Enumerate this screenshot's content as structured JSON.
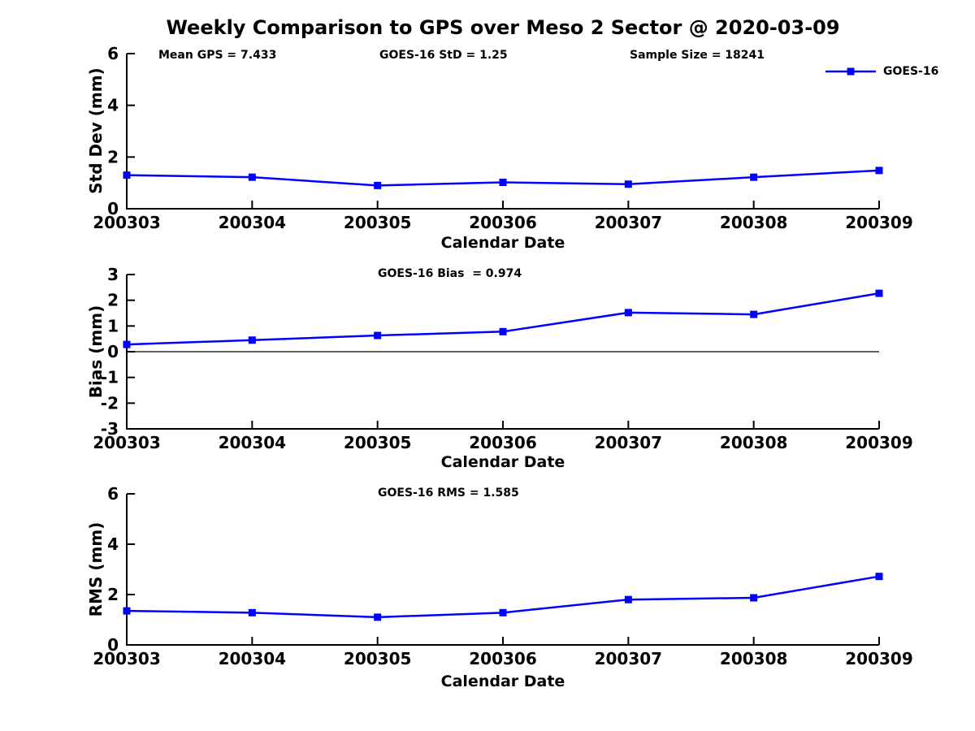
{
  "title": "Weekly Comparison to GPS over Meso 2 Sector @ 2020-03-09",
  "colors": {
    "line": "#0000FF",
    "axis": "#000000",
    "text": "#000000",
    "background": "#FFFFFF"
  },
  "chart_data": [
    {
      "type": "line",
      "categories": [
        "200303",
        "200304",
        "200305",
        "200306",
        "200307",
        "200308",
        "200309"
      ],
      "series": [
        {
          "name": "GOES-16",
          "values": [
            1.3,
            1.22,
            0.9,
            1.02,
            0.95,
            1.22,
            1.48
          ]
        }
      ],
      "annotations": [
        "Mean GPS = 7.433",
        "GOES-16 StD = 1.25",
        "Sample Size = 18241"
      ],
      "legend": {
        "label": "GOES-16",
        "position": "top-right"
      },
      "xlabel": "Calendar Date",
      "ylabel": "Std Dev (mm)",
      "ylim": [
        0,
        6
      ],
      "yticks": [
        0,
        2,
        4,
        6
      ],
      "zero_line": false,
      "grid": false
    },
    {
      "type": "line",
      "categories": [
        "200303",
        "200304",
        "200305",
        "200306",
        "200307",
        "200308",
        "200309"
      ],
      "series": [
        {
          "name": "GOES-16",
          "values": [
            0.28,
            0.45,
            0.63,
            0.78,
            1.52,
            1.45,
            2.27
          ]
        }
      ],
      "annotation": "GOES-16 Bias  = 0.974",
      "xlabel": "Calendar Date",
      "ylabel": "Bias (mm)",
      "ylim": [
        -3,
        3
      ],
      "yticks": [
        -3,
        -2,
        -1,
        0,
        1,
        2,
        3
      ],
      "zero_line": true,
      "grid": false
    },
    {
      "type": "line",
      "categories": [
        "200303",
        "200304",
        "200305",
        "200306",
        "200307",
        "200308",
        "200309"
      ],
      "series": [
        {
          "name": "GOES-16",
          "values": [
            1.35,
            1.28,
            1.1,
            1.28,
            1.8,
            1.87,
            2.72
          ]
        }
      ],
      "annotation": "GOES-16 RMS = 1.585",
      "xlabel": "Calendar Date",
      "ylabel": "RMS (mm)",
      "ylim": [
        0,
        6
      ],
      "yticks": [
        0,
        2,
        4,
        6
      ],
      "zero_line": false,
      "grid": false
    }
  ]
}
